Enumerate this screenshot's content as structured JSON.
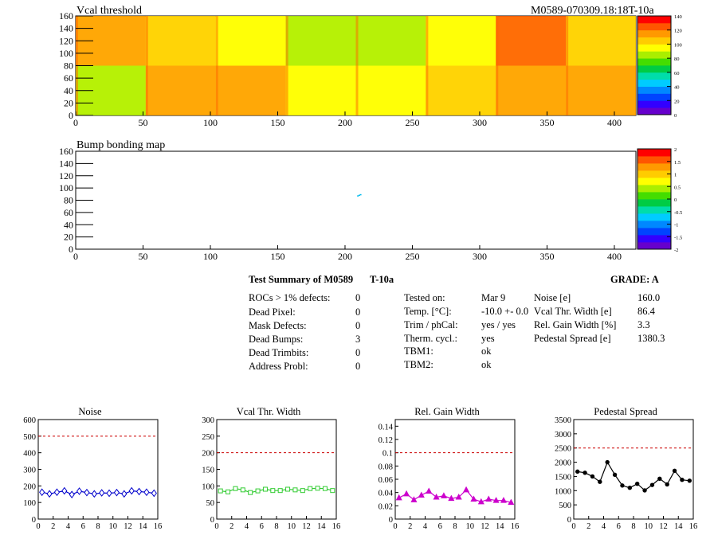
{
  "threshold_map": {
    "title": "Vcal threshold",
    "module_id": "M0589-070309.18:18T-10a",
    "colorbar_labels": [
      "140",
      "120",
      "100",
      "80",
      "60",
      "40",
      "20",
      "0"
    ]
  },
  "bump_map": {
    "title": "Bump bonding map",
    "colorbar_labels": [
      "2",
      "1.5",
      "1",
      "0.5",
      "0",
      "-0.5",
      "-1",
      "-1.5",
      "-2"
    ]
  },
  "summary": {
    "title": "Test Summary of M0589",
    "test_label": "T-10a",
    "grade": "GRADE:  A",
    "defects": [
      {
        "label": "ROCs > 1% defects:",
        "value": "0"
      },
      {
        "label": "Dead Pixel:",
        "value": "0"
      },
      {
        "label": "Mask Defects:",
        "value": "0"
      },
      {
        "label": "Dead Bumps:",
        "value": "3"
      },
      {
        "label": "Dead Trimbits:",
        "value": "0"
      },
      {
        "label": "Address Probl:",
        "value": "0"
      }
    ],
    "conditions": [
      {
        "label": "Tested on:",
        "value": "Mar 9"
      },
      {
        "label": "Temp. [°C]:",
        "value": "-10.0 +- 0.0"
      },
      {
        "label": "Trim / phCal:",
        "value": "yes / yes"
      },
      {
        "label": "Therm. cycl.:",
        "value": "yes"
      },
      {
        "label": "TBM1:",
        "value": "ok"
      },
      {
        "label": "TBM2:",
        "value": "ok"
      }
    ],
    "results": [
      {
        "label": "Noise [e]",
        "value": "160.0"
      },
      {
        "label": "Vcal Thr. Width [e]",
        "value": "86.4"
      },
      {
        "label": "Rel. Gain Width [%]",
        "value": "3.3"
      },
      {
        "label": "Pedestal Spread [e]",
        "value": "1380.3"
      }
    ]
  },
  "chart_data": [
    {
      "type": "heatmap",
      "title": "Vcal threshold",
      "x_range": [
        0,
        416
      ],
      "y_range": [
        0,
        160
      ],
      "x_ticks": [
        0,
        50,
        100,
        150,
        200,
        250,
        300,
        350,
        400
      ],
      "y_ticks": [
        0,
        20,
        40,
        60,
        80,
        100,
        120,
        140,
        160
      ],
      "z_range": [
        0,
        140
      ],
      "z_ticks": [
        0,
        20,
        40,
        60,
        80,
        100,
        120,
        140
      ],
      "roc_mean_threshold_top_row": [
        110,
        105,
        90,
        80,
        85,
        95,
        125,
        100
      ],
      "roc_mean_threshold_bottom_row": [
        85,
        115,
        110,
        95,
        95,
        105,
        115,
        110
      ]
    },
    {
      "type": "heatmap",
      "title": "Bump bonding map",
      "x_range": [
        0,
        416
      ],
      "y_range": [
        0,
        160
      ],
      "x_ticks": [
        0,
        50,
        100,
        150,
        200,
        250,
        300,
        350,
        400
      ],
      "y_ticks": [
        0,
        20,
        40,
        60,
        80,
        100,
        120,
        140,
        160
      ],
      "z_range": [
        -2,
        2
      ],
      "z_ticks": [
        -2,
        -1.5,
        -1,
        -0.5,
        0,
        0.5,
        1,
        1.5,
        2
      ],
      "points": [
        {
          "x": 209,
          "y": 88
        },
        {
          "x": 210,
          "y": 89
        },
        {
          "x": 211,
          "y": 90
        }
      ]
    },
    {
      "type": "line",
      "title": "Noise",
      "x": [
        0,
        1,
        2,
        3,
        4,
        5,
        6,
        7,
        8,
        9,
        10,
        11,
        12,
        13,
        14,
        15
      ],
      "values": [
        162,
        152,
        162,
        170,
        148,
        168,
        160,
        152,
        158,
        156,
        160,
        152,
        170,
        166,
        162,
        156
      ],
      "xlim": [
        0,
        16
      ],
      "ylim": [
        0,
        600
      ],
      "x_ticks": [
        0,
        2,
        4,
        6,
        8,
        10,
        12,
        14,
        16
      ],
      "y_ticks": [
        0,
        100,
        200,
        300,
        400,
        500,
        600
      ],
      "limit": 500,
      "color": "#0000cc",
      "marker": "diamond"
    },
    {
      "type": "line",
      "title": "Vcal Thr. Width",
      "x": [
        0,
        1,
        2,
        3,
        4,
        5,
        6,
        7,
        8,
        9,
        10,
        11,
        12,
        13,
        14,
        15
      ],
      "values": [
        85,
        82,
        92,
        88,
        80,
        85,
        90,
        86,
        86,
        90,
        88,
        86,
        92,
        93,
        92,
        86
      ],
      "xlim": [
        0,
        16
      ],
      "ylim": [
        0,
        300
      ],
      "x_ticks": [
        0,
        2,
        4,
        6,
        8,
        10,
        12,
        14,
        16
      ],
      "y_ticks": [
        0,
        50,
        100,
        150,
        200,
        250,
        300
      ],
      "limit": 200,
      "color": "#33cc33",
      "marker": "square"
    },
    {
      "type": "line",
      "title": "Rel. Gain Width",
      "x": [
        0,
        1,
        2,
        3,
        4,
        5,
        6,
        7,
        8,
        9,
        10,
        11,
        12,
        13,
        14,
        15
      ],
      "values": [
        0.032,
        0.038,
        0.029,
        0.036,
        0.042,
        0.033,
        0.035,
        0.031,
        0.033,
        0.044,
        0.03,
        0.026,
        0.03,
        0.028,
        0.028,
        0.025
      ],
      "xlim": [
        0,
        16
      ],
      "ylim": [
        0,
        0.15
      ],
      "x_ticks": [
        0,
        2,
        4,
        6,
        8,
        10,
        12,
        14,
        16
      ],
      "y_ticks": [
        0,
        0.02,
        0.04,
        0.06,
        0.08,
        0.1,
        0.12,
        0.14
      ],
      "limit": 0.1,
      "color": "#cc00cc",
      "marker": "triangle"
    },
    {
      "type": "line",
      "title": "Pedestal Spread",
      "x": [
        0,
        1,
        2,
        3,
        4,
        5,
        6,
        7,
        8,
        9,
        10,
        11,
        12,
        13,
        14,
        15
      ],
      "values": [
        1670,
        1630,
        1500,
        1310,
        2000,
        1560,
        1180,
        1100,
        1240,
        1010,
        1200,
        1420,
        1220,
        1700,
        1380,
        1350
      ],
      "xlim": [
        0,
        16
      ],
      "ylim": [
        0,
        3500
      ],
      "x_ticks": [
        0,
        2,
        4,
        6,
        8,
        10,
        12,
        14,
        16
      ],
      "y_ticks": [
        0,
        500,
        1000,
        1500,
        2000,
        2500,
        3000,
        3500
      ],
      "limit": 2500,
      "color": "#000000",
      "marker": "star"
    }
  ]
}
